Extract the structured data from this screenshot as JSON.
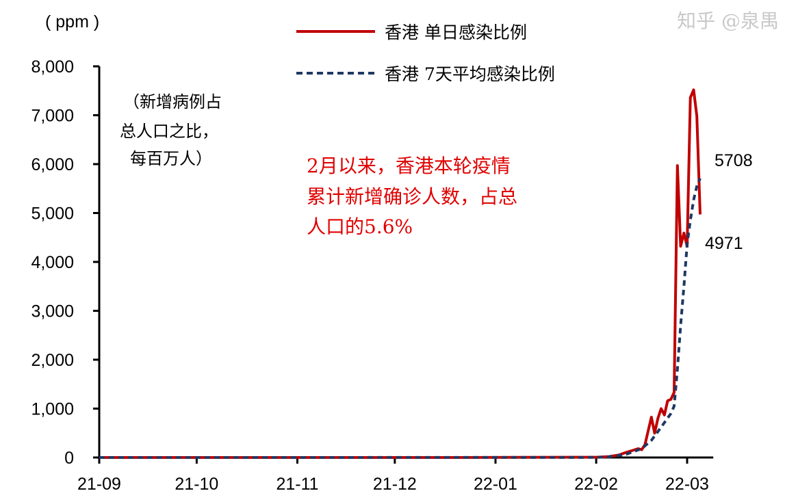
{
  "chart_data": {
    "type": "line",
    "unit_label": "( ppm )",
    "note_lines": [
      "（新增病例占",
      "总人口之比，",
      "每百万人）"
    ],
    "annotation_lines": [
      "2月以来，香港本轮疫情",
      "累计新增确诊人数，占总",
      "人口的5.6%"
    ],
    "annotation_color": "#e00000",
    "xlim": [
      "2021-09-01",
      "2022-03-08"
    ],
    "ylim": [
      0,
      8000
    ],
    "grid": false,
    "y_ticks": [
      0,
      1000,
      2000,
      3000,
      4000,
      5000,
      6000,
      7000,
      8000
    ],
    "y_tick_labels": [
      "0",
      "1,000",
      "2,000",
      "3,000",
      "4,000",
      "5,000",
      "6,000",
      "7,000",
      "8,000"
    ],
    "x_ticks": [
      "2021-09-01",
      "2021-10-01",
      "2021-11-01",
      "2021-12-01",
      "2022-01-01",
      "2022-02-01",
      "2022-03-01"
    ],
    "x_tick_labels": [
      "21-09",
      "21-10",
      "21-11",
      "21-12",
      "22-01",
      "22-02",
      "22-03"
    ],
    "legend_placement": "top",
    "series": [
      {
        "name": "香港 单日感染比例",
        "color": "#c00000",
        "style": "solid",
        "end_label": "4971",
        "end_label_color": "#e00000",
        "points": [
          [
            "2021-09-01",
            0
          ],
          [
            "2021-12-20",
            0
          ],
          [
            "2022-01-10",
            3
          ],
          [
            "2022-01-25",
            5
          ],
          [
            "2022-02-01",
            5
          ],
          [
            "2022-02-05",
            20
          ],
          [
            "2022-02-08",
            50
          ],
          [
            "2022-02-10",
            100
          ],
          [
            "2022-02-12",
            140
          ],
          [
            "2022-02-14",
            180
          ],
          [
            "2022-02-15",
            160
          ],
          [
            "2022-02-16",
            260
          ],
          [
            "2022-02-18",
            825
          ],
          [
            "2022-02-19",
            500
          ],
          [
            "2022-02-20",
            800
          ],
          [
            "2022-02-21",
            1000
          ],
          [
            "2022-02-22",
            870
          ],
          [
            "2022-02-23",
            1160
          ],
          [
            "2022-02-24",
            1190
          ],
          [
            "2022-02-25",
            1330
          ],
          [
            "2022-02-26",
            5970
          ],
          [
            "2022-02-27",
            4320
          ],
          [
            "2022-02-28",
            4590
          ],
          [
            "2022-03-01",
            4320
          ],
          [
            "2022-03-02",
            7360
          ],
          [
            "2022-03-03",
            7520
          ],
          [
            "2022-03-04",
            6980
          ],
          [
            "2022-03-05",
            4971
          ]
        ]
      },
      {
        "name": "香港 7天平均感染比例",
        "color": "#1f3864",
        "style": "dashed",
        "end_label": "5708",
        "end_label_color": "#000000",
        "points": [
          [
            "2021-09-01",
            0
          ],
          [
            "2022-01-10",
            1
          ],
          [
            "2022-02-01",
            3
          ],
          [
            "2022-02-05",
            15
          ],
          [
            "2022-02-10",
            60
          ],
          [
            "2022-02-15",
            180
          ],
          [
            "2022-02-18",
            350
          ],
          [
            "2022-02-21",
            620
          ],
          [
            "2022-02-24",
            900
          ],
          [
            "2022-02-25",
            1050
          ],
          [
            "2022-02-26",
            1800
          ],
          [
            "2022-02-27",
            2700
          ],
          [
            "2022-02-28",
            3500
          ],
          [
            "2022-03-01",
            4360
          ],
          [
            "2022-03-02",
            4850
          ],
          [
            "2022-03-03",
            5270
          ],
          [
            "2022-03-04",
            5550
          ],
          [
            "2022-03-05",
            5708
          ]
        ]
      }
    ]
  },
  "watermark": "知乎 @泉禺"
}
